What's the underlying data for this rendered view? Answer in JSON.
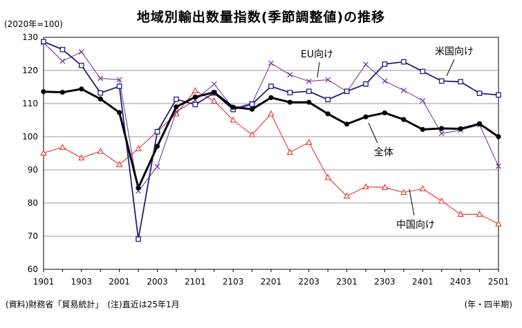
{
  "chart_data": {
    "type": "line",
    "title": "地域別輸出数量指数(季節調整値)の推移",
    "unit_note": "(2020年=100)",
    "source": "(資料)財務省「貿易統計」　(注)直近は25年1月",
    "frequency_note": "(年・四半期)",
    "xlabel": "",
    "ylabel": "",
    "ylim": [
      60,
      130
    ],
    "yticks": [
      60,
      70,
      80,
      90,
      100,
      110,
      120,
      130
    ],
    "x_tick_labels": [
      "1901",
      "1903",
      "2001",
      "2003",
      "2101",
      "2103",
      "2201",
      "2203",
      "2301",
      "2303",
      "2401",
      "2403",
      "2501"
    ],
    "x": [
      "1901",
      "1902",
      "1903",
      "1904",
      "2001",
      "2002",
      "2003",
      "2004",
      "2101",
      "2102",
      "2103",
      "2104",
      "2201",
      "2202",
      "2203",
      "2204",
      "2301",
      "2302",
      "2303",
      "2304",
      "2401",
      "2402",
      "2403",
      "2404",
      "2501"
    ],
    "grid": "horizontal",
    "series": [
      {
        "name": "全体",
        "color": "#000000",
        "marker": "circle",
        "values": [
          113.6,
          113.4,
          114.4,
          111.4,
          107.3,
          84.6,
          97.1,
          109.0,
          112.0,
          113.4,
          108.9,
          108.3,
          111.8,
          110.4,
          110.4,
          106.9,
          103.8,
          106.0,
          107.2,
          105.2,
          102.2,
          102.5,
          102.4,
          103.9,
          100.0
        ]
      },
      {
        "name": "EU向け",
        "color": "#1f1f7a",
        "marker": "square",
        "values": [
          128.7,
          126.3,
          121.5,
          113.2,
          115.2,
          69.1,
          101.5,
          111.3,
          109.7,
          113.2,
          108.2,
          109.8,
          115.2,
          113.3,
          113.7,
          111.2,
          113.7,
          115.9,
          121.9,
          122.6,
          119.7,
          116.8,
          116.6,
          113.1,
          112.6
        ]
      },
      {
        "name": "米国向け",
        "color": "#7a3d9e",
        "marker": "cross",
        "values": [
          128.4,
          122.8,
          125.6,
          117.6,
          117.2,
          83.6,
          91.0,
          107.5,
          111.0,
          115.9,
          108.6,
          110.1,
          122.2,
          118.7,
          116.7,
          117.2,
          113.6,
          121.8,
          116.8,
          114.0,
          110.9,
          101.0,
          102.0,
          103.6,
          91.1
        ]
      },
      {
        "name": "中国向け",
        "color": "#e3302a",
        "marker": "triangle",
        "values": [
          95.1,
          96.8,
          93.6,
          95.6,
          91.6,
          96.4,
          101.6,
          106.9,
          113.9,
          110.8,
          105.0,
          100.6,
          106.9,
          95.3,
          98.3,
          87.7,
          82.1,
          84.9,
          84.7,
          83.2,
          84.3,
          80.6,
          76.6,
          76.6,
          73.7
        ]
      }
    ]
  }
}
